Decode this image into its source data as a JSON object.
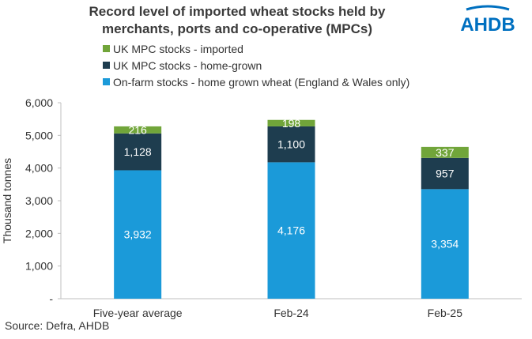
{
  "title_line1": "Record level of imported wheat stocks held by",
  "title_line2": "merchants, ports and co-operative (MPCs)",
  "logo_text": "AHDB",
  "logo_color": "#0070c0",
  "source": "Source: Defra, AHDB",
  "chart_data": {
    "type": "bar",
    "stacked": true,
    "categories": [
      "Five-year average",
      "Feb-24",
      "Feb-25"
    ],
    "series": [
      {
        "name": "On-farm stocks - home grown wheat (England & Wales only)",
        "color": "#1b9ad9",
        "values": [
          3932,
          4176,
          3354
        ],
        "labels": [
          "3,932",
          "4,176",
          "3,354"
        ]
      },
      {
        "name": "UK MPC stocks - home-grown",
        "color": "#1e3d4f",
        "values": [
          1128,
          1100,
          957
        ],
        "labels": [
          "1,128",
          "1,100",
          "957"
        ]
      },
      {
        "name": "UK MPC stocks - imported",
        "color": "#71a53a",
        "values": [
          216,
          198,
          337
        ],
        "labels": [
          "216",
          "198",
          "337"
        ]
      }
    ],
    "legend_order": [
      2,
      1,
      0
    ],
    "legend_position": "top",
    "ylabel": "Thousand tonnes",
    "ylim": [
      0,
      6000
    ],
    "yticks": [
      0,
      1000,
      2000,
      3000,
      4000,
      5000,
      6000
    ],
    "ytick_labels": [
      "-",
      "1,000",
      "2,000",
      "3,000",
      "4,000",
      "5,000",
      "6,000"
    ],
    "grid": false
  }
}
